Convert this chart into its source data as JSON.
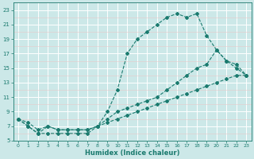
{
  "xlabel": "Humidex (Indice chaleur)",
  "background_color": "#cce8e8",
  "grid_color": "#ffffff",
  "line_color": "#1a7a6e",
  "xlim": [
    -0.5,
    23.5
  ],
  "ylim": [
    5,
    24
  ],
  "xticks": [
    0,
    1,
    2,
    3,
    4,
    5,
    6,
    7,
    8,
    9,
    10,
    11,
    12,
    13,
    14,
    15,
    16,
    17,
    18,
    19,
    20,
    21,
    22,
    23
  ],
  "yticks": [
    5,
    7,
    9,
    11,
    13,
    15,
    17,
    19,
    21,
    23
  ],
  "curve1_x": [
    0,
    1,
    2,
    3,
    4,
    5,
    6,
    7,
    8,
    9,
    10,
    11,
    12,
    13,
    14,
    15,
    16,
    17,
    18,
    19,
    20,
    21,
    22,
    23
  ],
  "curve1_y": [
    8,
    7,
    6,
    6,
    6,
    6,
    6,
    6,
    7,
    9,
    12,
    17,
    19,
    20,
    21,
    22,
    22.5,
    22,
    22.5,
    19.5,
    17.5,
    16,
    15,
    14
  ],
  "curve2_x": [
    0,
    1,
    2,
    3,
    4,
    5,
    6,
    7,
    8,
    9,
    10,
    11,
    12,
    13,
    14,
    15,
    16,
    17,
    18,
    19,
    20,
    21,
    22,
    23
  ],
  "curve2_y": [
    8,
    7,
    6,
    7,
    6.5,
    6.5,
    6.5,
    6.5,
    7,
    8,
    9,
    9.5,
    10,
    10.5,
    11,
    12,
    13,
    14,
    15,
    15.5,
    17.5,
    16,
    15.5,
    14
  ],
  "curve3_x": [
    0,
    1,
    2,
    3,
    4,
    5,
    6,
    7,
    8,
    9,
    10,
    11,
    12,
    13,
    14,
    15,
    16,
    17,
    18,
    19,
    20,
    21,
    22,
    23
  ],
  "curve3_y": [
    8,
    7.5,
    6.5,
    7,
    6.5,
    6.5,
    6.5,
    6.5,
    7,
    7.5,
    8,
    8.5,
    9,
    9.5,
    10,
    10.5,
    11,
    11.5,
    12,
    12.5,
    13,
    13.5,
    14,
    14
  ]
}
